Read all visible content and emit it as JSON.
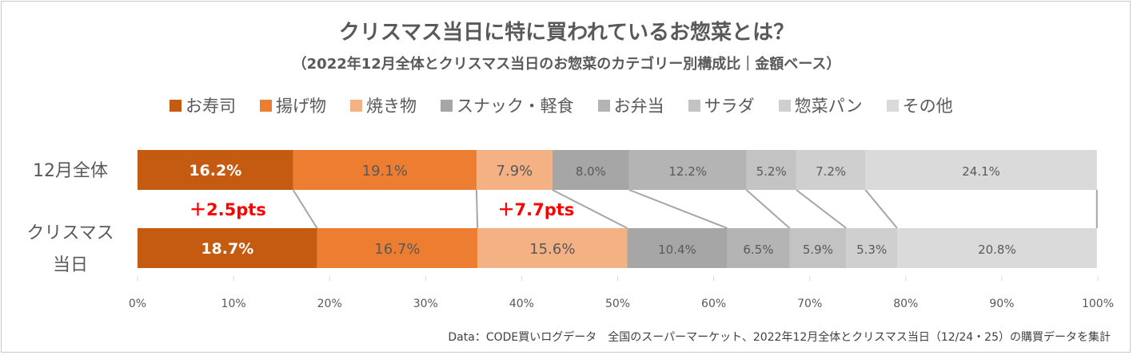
{
  "chart_data": {
    "type": "bar",
    "orientation": "horizontal-stacked-100",
    "title": "クリスマス当日に特に買われているお惣菜とは？",
    "subtitle": "（2022年12月全体とクリスマス当日のお惣菜のカテゴリー別構成比｜金額ベース）",
    "categories": [
      "12月全体",
      "クリスマス当日"
    ],
    "category_lines": [
      [
        "12月全体"
      ],
      [
        "クリスマス",
        "当日"
      ]
    ],
    "series": [
      {
        "name": "お寿司",
        "color": "#c55a11",
        "values": [
          16.2,
          18.7
        ],
        "labels": [
          "16.2%",
          "18.7%"
        ]
      },
      {
        "name": "揚げ物",
        "color": "#ed7d31",
        "values": [
          19.1,
          16.7
        ],
        "labels": [
          "19.1%",
          "16.7%"
        ]
      },
      {
        "name": "焼き物",
        "color": "#f4b183",
        "values": [
          7.9,
          15.6
        ],
        "labels": [
          "7.9%",
          "15.6%"
        ]
      },
      {
        "name": "スナック・軽食",
        "color": "#a6a6a6",
        "values": [
          8.0,
          10.4
        ],
        "labels": [
          "8.0%",
          "10.4%"
        ]
      },
      {
        "name": "お弁当",
        "color": "#b4b4b4",
        "values": [
          12.2,
          6.5
        ],
        "labels": [
          "12.2%",
          "6.5%"
        ]
      },
      {
        "name": "サラダ",
        "color": "#c3c3c3",
        "values": [
          5.2,
          5.9
        ],
        "labels": [
          "5.2%",
          "5.9%"
        ]
      },
      {
        "name": "惣菜パン",
        "color": "#cfcfcf",
        "values": [
          7.2,
          5.3
        ],
        "labels": [
          "7.2%",
          "5.3%"
        ]
      },
      {
        "name": "その他",
        "color": "#dadada",
        "values": [
          24.1,
          20.8
        ],
        "labels": [
          "24.1%",
          "20.8%"
        ]
      }
    ],
    "x_ticks": [
      "0%",
      "10%",
      "20%",
      "30%",
      "40%",
      "50%",
      "60%",
      "70%",
      "80%",
      "90%",
      "100%"
    ],
    "xlim": [
      0,
      100
    ],
    "legend_position": "top",
    "grid": false,
    "annotations": [
      {
        "text": "＋2.5pts",
        "at_percent": 9.4,
        "color": "#ff0000"
      },
      {
        "text": "＋7.7pts",
        "at_percent": 41.5,
        "color": "#ff0000"
      }
    ]
  },
  "source_note": "Data：CODE買いログデータ　全国のスーパーマーケット、2022年12月全体とクリスマス当日（12/24・25）の購買データを集計"
}
